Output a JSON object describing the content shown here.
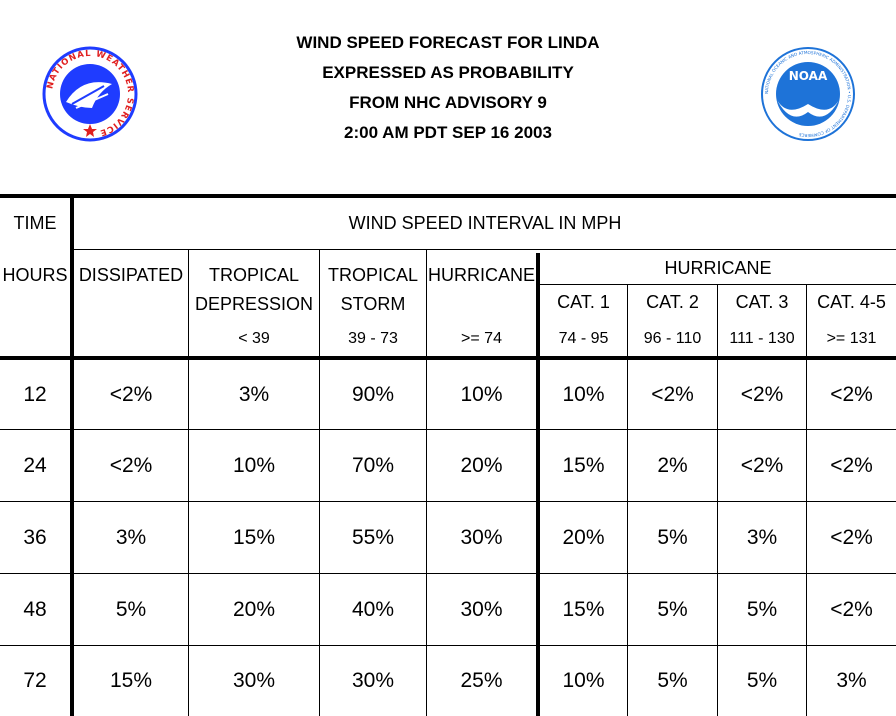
{
  "title": {
    "line1": "WIND SPEED FORECAST FOR LINDA",
    "line2": "EXPRESSED AS PROBABILITY",
    "line3": "FROM NHC ADVISORY   9",
    "line4": "2:00 AM PDT SEP 16 2003"
  },
  "logos": {
    "left_text": "NATIONAL WEATHER SERVICE",
    "right_inner": "NOAA",
    "right_ring": "NATIONAL OCEANIC AND ATMOSPHERIC ADMINISTRATION • U.S. DEPARTMENT OF COMMERCE",
    "colors": {
      "nws_blue": "#1f3cff",
      "noaa_blue": "#1e73d8",
      "star_red": "#e02020"
    }
  },
  "table": {
    "time_label": "TIME",
    "wind_interval_label": "WIND SPEED INTERVAL IN MPH",
    "hours_label": "HOURS",
    "hurricane_group_label": "HURRICANE",
    "columns": [
      {
        "label1": "DISSIPATED",
        "label2": "",
        "range": ""
      },
      {
        "label1": "TROPICAL",
        "label2": "DEPRESSION",
        "range": "< 39"
      },
      {
        "label1": "TROPICAL",
        "label2": "STORM",
        "range": "39 - 73"
      },
      {
        "label1": "HURRICANE",
        "label2": "",
        "range": ">= 74"
      },
      {
        "label1": "CAT. 1",
        "label2": "",
        "range": "74 - 95"
      },
      {
        "label1": "CAT. 2",
        "label2": "",
        "range": "96 - 110"
      },
      {
        "label1": "CAT. 3",
        "label2": "",
        "range": "111 - 130"
      },
      {
        "label1": "CAT. 4-5",
        "label2": "",
        "range": ">= 131"
      }
    ],
    "rows": [
      {
        "hours": "12",
        "values": [
          "<2%",
          "3%",
          "90%",
          "10%",
          "10%",
          "<2%",
          "<2%",
          "<2%"
        ]
      },
      {
        "hours": "24",
        "values": [
          "<2%",
          "10%",
          "70%",
          "20%",
          "15%",
          "2%",
          "<2%",
          "<2%"
        ]
      },
      {
        "hours": "36",
        "values": [
          "3%",
          "15%",
          "55%",
          "30%",
          "20%",
          "5%",
          "3%",
          "<2%"
        ]
      },
      {
        "hours": "48",
        "values": [
          "5%",
          "20%",
          "40%",
          "30%",
          "15%",
          "5%",
          "5%",
          "<2%"
        ]
      },
      {
        "hours": "72",
        "values": [
          "15%",
          "30%",
          "30%",
          "25%",
          "10%",
          "5%",
          "5%",
          "3%"
        ]
      }
    ]
  }
}
